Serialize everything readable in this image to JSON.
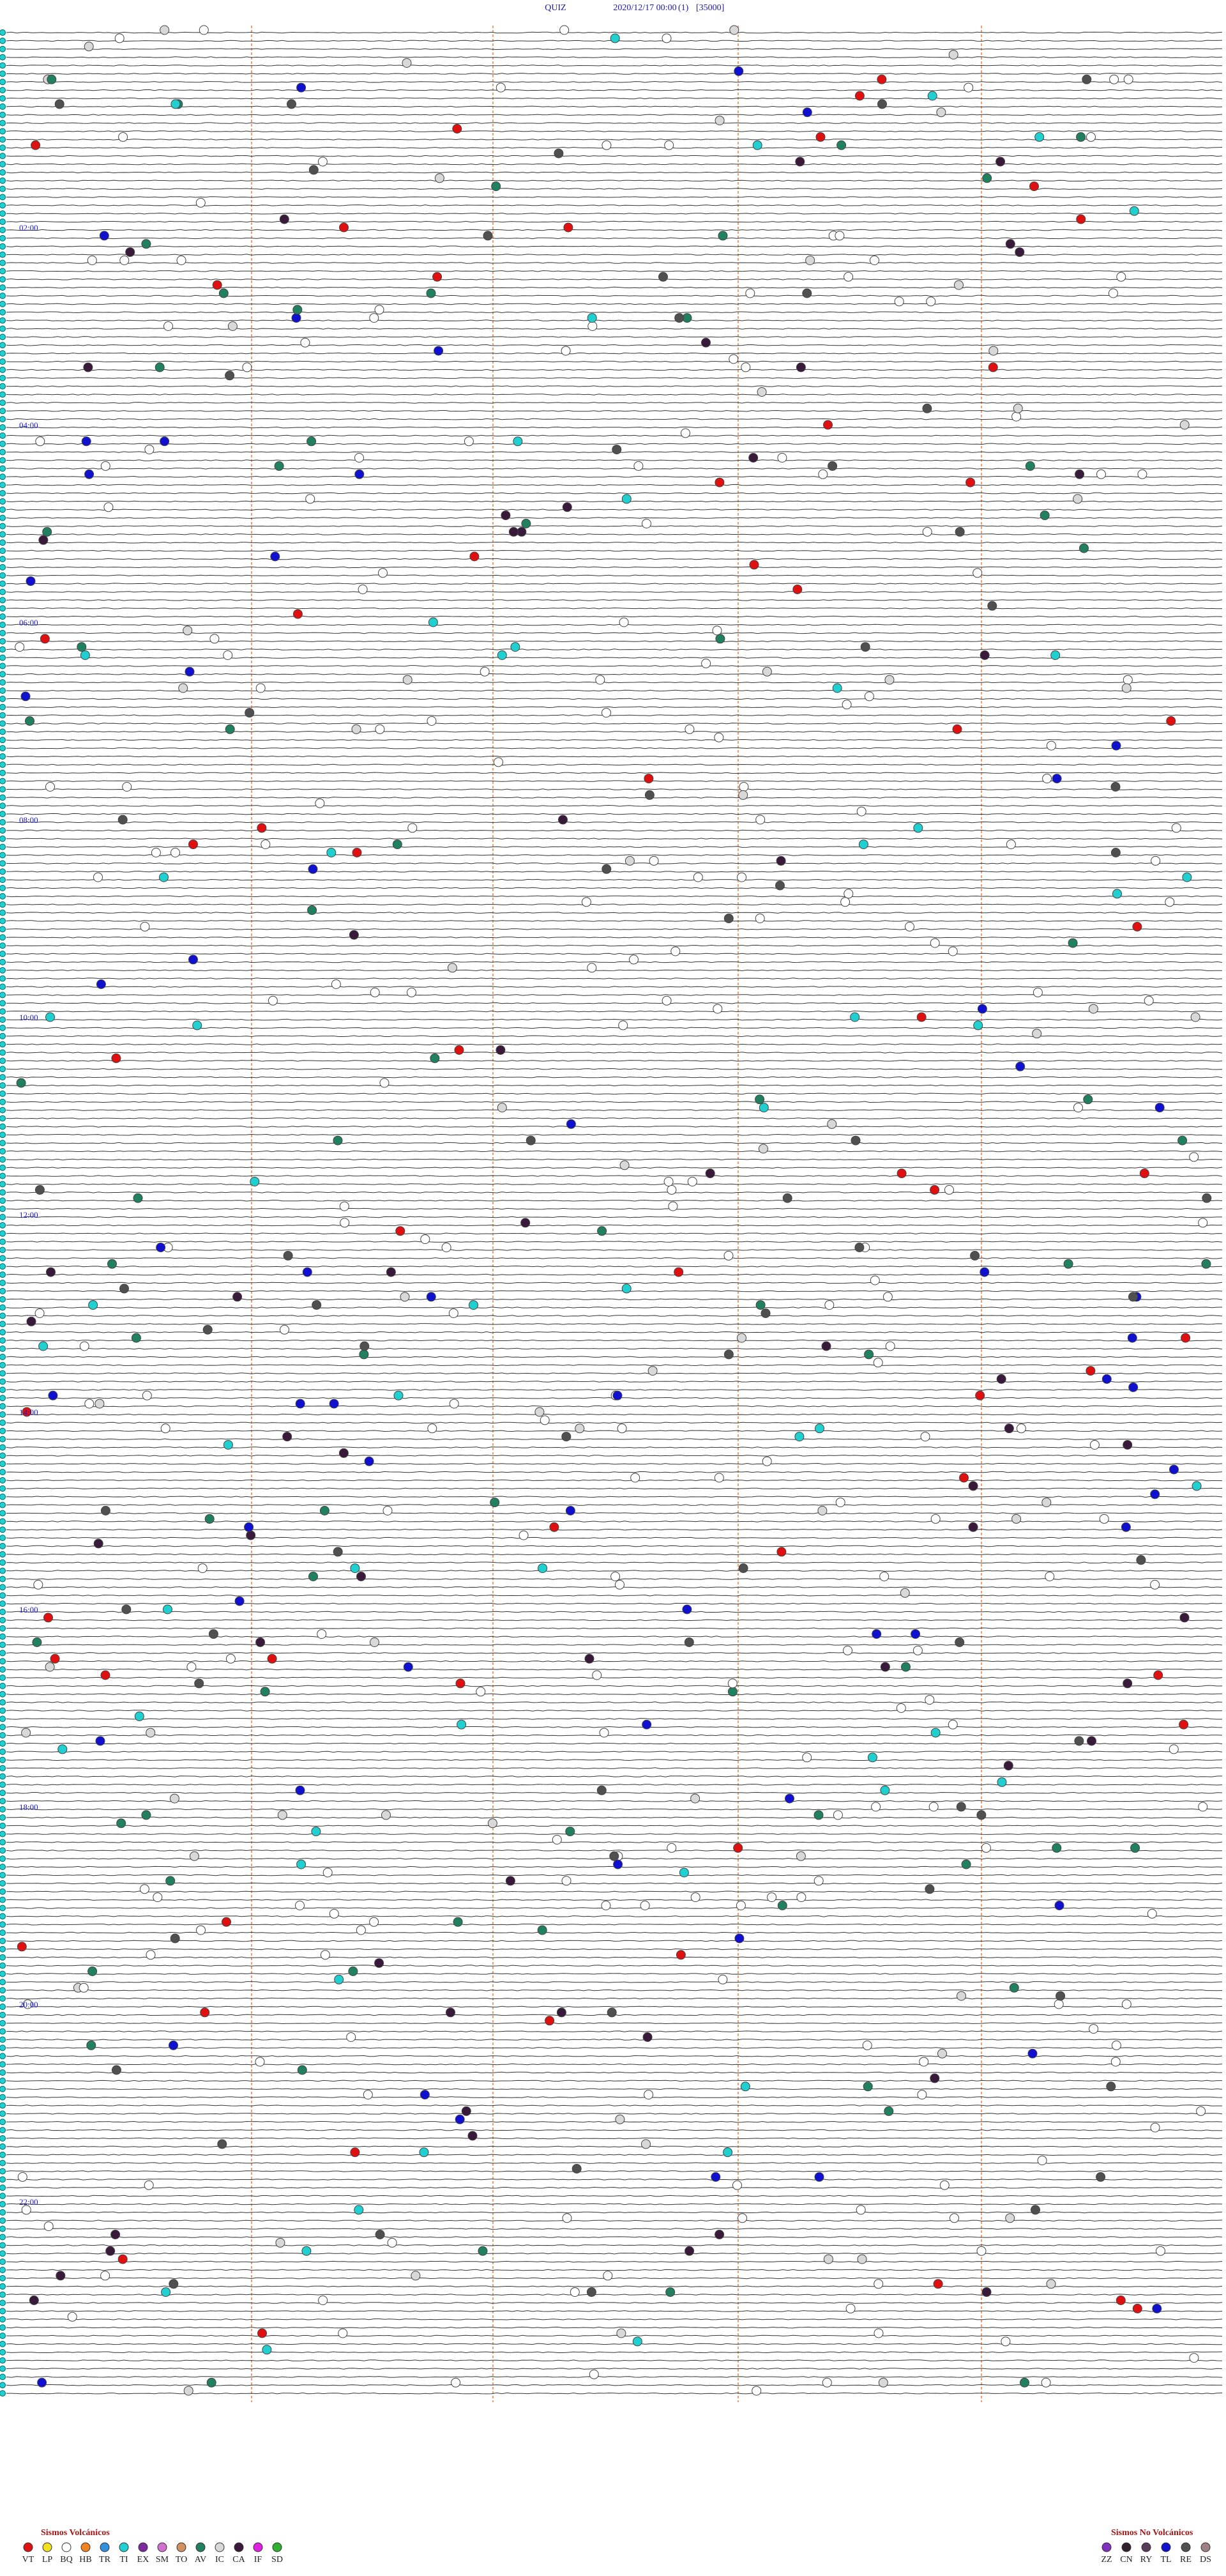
{
  "header": {
    "title": "QUIZ",
    "datetime": "2020/12/17 00:00",
    "channel": "(1)",
    "scale": "[35000]"
  },
  "hour_labels": [
    "02:00",
    "04:00",
    "06:00",
    "08:00",
    "10:00",
    "12:00",
    "14:00",
    "16:00",
    "18:00",
    "20:00",
    "22:00"
  ],
  "legend": {
    "volcanic": {
      "title": "Sismos Volcánicos",
      "items": [
        {
          "label": "VT",
          "color": "#e01010"
        },
        {
          "label": "LP",
          "color": "#f0e020"
        },
        {
          "label": "BQ",
          "color": "#ffffff"
        },
        {
          "label": "HB",
          "color": "#f08020"
        },
        {
          "label": "TR",
          "color": "#3090e0"
        },
        {
          "label": "TI",
          "color": "#20d0d0"
        },
        {
          "label": "EX",
          "color": "#7a2a9a"
        },
        {
          "label": "SM",
          "color": "#d070d0"
        },
        {
          "label": "TO",
          "color": "#d09060"
        },
        {
          "label": "AV",
          "color": "#208060"
        },
        {
          "label": "IC",
          "color": "#d8d8d8"
        },
        {
          "label": "CA",
          "color": "#3a1a3a"
        },
        {
          "label": "IF",
          "color": "#e020e0"
        },
        {
          "label": "SD",
          "color": "#30b030"
        }
      ]
    },
    "non_volcanic": {
      "title": "Sismos No Volcánicos",
      "items": [
        {
          "label": "ZZ",
          "color": "#8030c0"
        },
        {
          "label": "CN",
          "color": "#302030"
        },
        {
          "label": "RY",
          "color": "#5a3a5a"
        },
        {
          "label": "TL",
          "color": "#1010d0"
        },
        {
          "label": "RE",
          "color": "#505050"
        },
        {
          "label": "DS",
          "color": "#a08080"
        }
      ]
    }
  }
}
